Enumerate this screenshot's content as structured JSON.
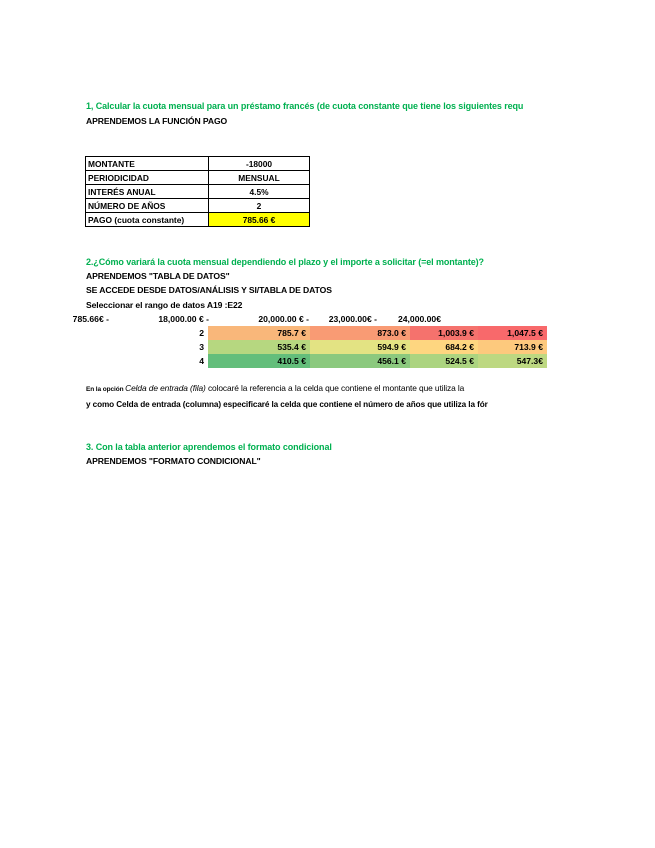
{
  "section1": {
    "title": "1, Calcular la cuota mensual para un préstamo francés (de cuota constante que tiene los siguientes requ",
    "subtitle": "APRENDEMOS LA FUNCIÓN PAGO"
  },
  "loan_table": [
    {
      "label": "MONTANTE",
      "value": "-18000"
    },
    {
      "label": "PERIODICIDAD",
      "value": "MENSUAL"
    },
    {
      "label": "INTERÉS ANUAL",
      "value": "4.5%"
    },
    {
      "label": "NÚMERO DE AÑOS",
      "value": "2"
    },
    {
      "label": "PAGO (cuota constante)",
      "value": "785.66 €"
    }
  ],
  "highlight_color": "#ffff00",
  "section2": {
    "title": "2.¿Cómo variará la cuota mensual dependiendo el plazo y el importe a solicitar (=el montante)?",
    "line1": "APRENDEMOS \"TABLA DE DATOS\"",
    "line2": "SE ACCEDE DESDE  DATOS/ANÁLISIS Y SI/TABLA DE DATOS",
    "line3": "Seleccionar el rango de datos A19 :E22"
  },
  "data_table": {
    "headers": [
      "785.66€ -",
      "18,000.00 € -",
      "20,000.00 € -",
      "23,000.00€ -",
      "24,000.00€"
    ],
    "rows": [
      {
        "years": "2",
        "values": [
          "785.7 €",
          "873.0 €",
          "1,003.9 €",
          "1,047.5 €"
        ],
        "colors": [
          "#f9b77a",
          "#f99b74",
          "#f5726d",
          "#f8696b"
        ]
      },
      {
        "years": "3",
        "values": [
          "535.4 €",
          "594.9 €",
          "684.2 €",
          "713.9 €"
        ],
        "colors": [
          "#b6d780",
          "#e3e383",
          "#fed680",
          "#fdc97d"
        ]
      },
      {
        "years": "4",
        "values": [
          "410.5 €",
          "456.1 €",
          "524.5 €",
          "547.3€"
        ],
        "colors": [
          "#63be7b",
          "#8bc97e",
          "#acd480",
          "#bdd881"
        ]
      }
    ]
  },
  "notes": {
    "line1_prefix": "En la opción ",
    "line1_italic": "Celda de entrada (fila)",
    "line1_rest": " colocaré la referencia a la celda que contiene el montante que utiliza la",
    "line2": "y como Celda de entrada (columna) especificaré la celda que contiene el número de años que utiliza la fór"
  },
  "section3": {
    "title": "3. Con la tabla anterior aprendemos el formato condicional",
    "subtitle": "APRENDEMOS \"FORMATO CONDICIONAL\""
  }
}
